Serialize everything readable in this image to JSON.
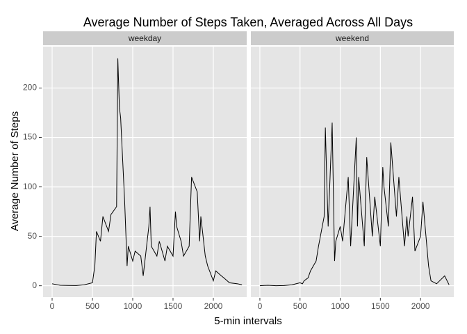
{
  "chart_data": {
    "type": "line",
    "title": "Average Number of Steps Taken, Averaged Across All Days",
    "x_label": "5-min intervals",
    "y_label": "Average Number of Steps",
    "x": [
      0,
      100,
      200,
      300,
      400,
      500,
      530,
      550,
      600,
      630,
      700,
      730,
      800,
      815,
      835,
      850,
      900,
      930,
      945,
      1000,
      1030,
      1100,
      1130,
      1200,
      1215,
      1230,
      1300,
      1330,
      1400,
      1430,
      1500,
      1530,
      1545,
      1600,
      1630,
      1700,
      1730,
      1800,
      1830,
      1845,
      1900,
      1930,
      2000,
      2030,
      2100,
      2130,
      2200,
      2300,
      2355
    ],
    "series": [
      {
        "name": "weekday",
        "color": "#000000",
        "values": [
          2,
          0.5,
          0.3,
          0.2,
          1,
          3,
          20,
          55,
          45,
          70,
          55,
          72,
          80,
          230,
          180,
          170,
          85,
          20,
          40,
          25,
          35,
          30,
          10,
          60,
          80,
          40,
          30,
          45,
          25,
          40,
          30,
          75,
          60,
          45,
          30,
          40,
          110,
          95,
          45,
          70,
          30,
          20,
          5,
          15,
          10,
          8,
          3,
          2,
          1
        ]
      },
      {
        "name": "weekend",
        "color": "#000000",
        "values": [
          0,
          0.5,
          0,
          0.2,
          1,
          3,
          2,
          5,
          8,
          15,
          25,
          40,
          70,
          160,
          100,
          60,
          165,
          25,
          45,
          60,
          45,
          110,
          40,
          150,
          60,
          110,
          40,
          130,
          50,
          90,
          40,
          120,
          100,
          60,
          145,
          70,
          110,
          40,
          70,
          50,
          90,
          35,
          50,
          85,
          20,
          5,
          2,
          10,
          1
        ]
      }
    ],
    "xlim": [
      -112,
      2414
    ],
    "ylim": [
      -11.5,
      241.9
    ],
    "xticks": [
      0,
      500,
      1000,
      1500,
      2000
    ],
    "yticks": [
      0,
      50,
      100,
      150,
      200
    ],
    "grid": true
  }
}
